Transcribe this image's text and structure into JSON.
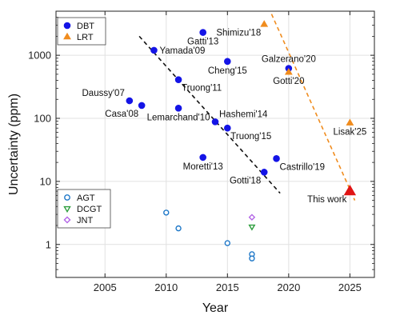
{
  "chart_data": {
    "type": "scatter",
    "xlabel": "Year",
    "ylabel": "Uncertainty (ppm)",
    "xlim": [
      2001,
      2027
    ],
    "ylim": [
      0.3,
      5000
    ],
    "yscale": "log",
    "xticks": [
      2005,
      2010,
      2015,
      2020,
      2025
    ],
    "yticks": [
      {
        "v": 1,
        "label": "1"
      },
      {
        "v": 10,
        "label": "10"
      },
      {
        "v": 100,
        "label": "100"
      },
      {
        "v": 1000,
        "label": "1000"
      }
    ],
    "grid": true,
    "legend_top": [
      {
        "name": "DBT",
        "marker": "circle",
        "color": "#1414e6",
        "filled": true
      },
      {
        "name": "LRT",
        "marker": "triangle-up",
        "color": "#f08c1e",
        "filled": true
      }
    ],
    "legend_bottom": [
      {
        "name": "AGT",
        "marker": "circle",
        "color": "#1f78c8",
        "filled": false
      },
      {
        "name": "DCGT",
        "marker": "triangle-down",
        "color": "#2e9e3e",
        "filled": false
      },
      {
        "name": "JNT",
        "marker": "diamond",
        "color": "#b366e6",
        "filled": false
      }
    ],
    "series": [
      {
        "name": "DBT",
        "marker": "circle",
        "color": "#1414e6",
        "filled": true,
        "points": [
          {
            "x": 2007,
            "y": 190,
            "label": "Daussy'07",
            "lpos": "nw"
          },
          {
            "x": 2008,
            "y": 160,
            "label": "Casa'08",
            "lpos": "sw"
          },
          {
            "x": 2009,
            "y": 1200,
            "label": "Yamada'09",
            "lpos": "e"
          },
          {
            "x": 2011,
            "y": 410,
            "label": "Truong'11",
            "lpos": "se"
          },
          {
            "x": 2011,
            "y": 145,
            "label": "Lemarchand'10",
            "lpos": "s"
          },
          {
            "x": 2013,
            "y": 2300,
            "label": "Gatti'13",
            "lpos": "s"
          },
          {
            "x": 2013,
            "y": 24,
            "label": "Moretti'13",
            "lpos": "s"
          },
          {
            "x": 2014,
            "y": 88,
            "label": "Hashemi'14",
            "lpos": "ne"
          },
          {
            "x": 2015,
            "y": 800,
            "label": "Cheng'15",
            "lpos": "s"
          },
          {
            "x": 2015,
            "y": 70,
            "label": "Truong'15",
            "lpos": "se"
          },
          {
            "x": 2018,
            "y": 14,
            "label": "Gotti'18",
            "lpos": "sw"
          },
          {
            "x": 2019,
            "y": 23,
            "label": "Castrillo'19",
            "lpos": "se"
          },
          {
            "x": 2020,
            "y": 620,
            "label": "Galzerano'20",
            "lpos": "n"
          }
        ]
      },
      {
        "name": "LRT",
        "marker": "triangle-up",
        "color": "#f08c1e",
        "filled": true,
        "points": [
          {
            "x": 2018,
            "y": 3100,
            "label": "Shimizu'18",
            "lpos": "sw"
          },
          {
            "x": 2020,
            "y": 540,
            "label": "Gotti'20",
            "lpos": "s"
          },
          {
            "x": 2025,
            "y": 85,
            "label": "Lisak'25",
            "lpos": "s"
          }
        ]
      },
      {
        "name": "This work",
        "marker": "triangle-up",
        "color": "#e01414",
        "filled": true,
        "big": true,
        "points": [
          {
            "x": 2025,
            "y": 7,
            "label": "This work",
            "lpos": "sw"
          }
        ]
      },
      {
        "name": "AGT",
        "marker": "circle",
        "color": "#1f78c8",
        "filled": false,
        "points": [
          {
            "x": 2010,
            "y": 3.2
          },
          {
            "x": 2011,
            "y": 1.8
          },
          {
            "x": 2015,
            "y": 1.05
          },
          {
            "x": 2017,
            "y": 0.7
          },
          {
            "x": 2017,
            "y": 0.6
          }
        ]
      },
      {
        "name": "DCGT",
        "marker": "triangle-down",
        "color": "#2e9e3e",
        "filled": false,
        "points": [
          {
            "x": 2017,
            "y": 1.9
          }
        ]
      },
      {
        "name": "JNT",
        "marker": "diamond",
        "color": "#b366e6",
        "filled": false,
        "points": [
          {
            "x": 2017,
            "y": 2.7
          }
        ]
      }
    ],
    "trend_lines": [
      {
        "color": "#111111",
        "from": {
          "x": 2007.8,
          "y": 2000
        },
        "to": {
          "x": 2019.3,
          "y": 6.5
        }
      },
      {
        "color": "#f08c1e",
        "from": {
          "x": 2018.6,
          "y": 4500
        },
        "to": {
          "x": 2025.4,
          "y": 5
        }
      }
    ]
  }
}
